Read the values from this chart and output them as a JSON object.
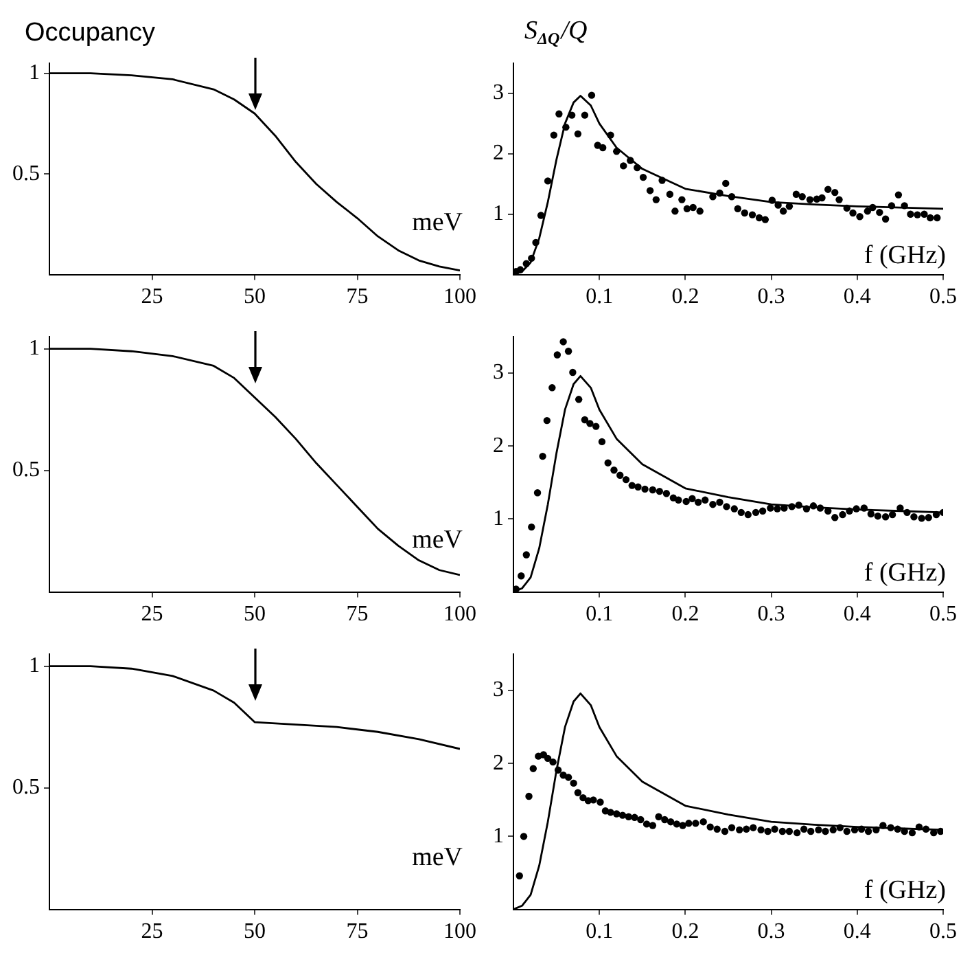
{
  "chart_data": [
    {
      "type": "line",
      "ylabel": "Occupancy",
      "xlabel": "meV",
      "color": "#000000",
      "xlim": [
        0,
        100
      ],
      "xticks": [
        25,
        50,
        75,
        100
      ],
      "ylim": [
        0,
        1.05
      ],
      "yticks": [
        0.5,
        1
      ],
      "grid": false,
      "legend": false,
      "x": [
        0,
        10,
        20,
        30,
        40,
        45,
        50,
        55,
        60,
        65,
        70,
        75,
        80,
        85,
        90,
        95,
        100
      ],
      "values": [
        1,
        1,
        0.99,
        0.97,
        0.92,
        0.87,
        0.8,
        0.69,
        0.56,
        0.45,
        0.36,
        0.28,
        0.19,
        0.12,
        0.07,
        0.04,
        0.02
      ]
    },
    {
      "type": "scatter",
      "ylabel": "S$_{ΔQ}$/Q",
      "xlabel": "f (GHz)",
      "xlim": [
        0,
        0.5
      ],
      "xticks": [
        0.1,
        0.2,
        0.3,
        0.4,
        0.5
      ],
      "ylim": [
        0,
        3.5
      ],
      "yticks": [
        1,
        2,
        3
      ],
      "grid": false,
      "legend": false,
      "series": [
        {
          "type": "scatter",
          "color": "#000000",
          "marker": "circle",
          "x": [
            0.003,
            0.008,
            0.015,
            0.021,
            0.026,
            0.032,
            0.04,
            0.047,
            0.053,
            0.061,
            0.068,
            0.075,
            0.083,
            0.091,
            0.098,
            0.104,
            0.113,
            0.12,
            0.128,
            0.136,
            0.144,
            0.151,
            0.159,
            0.166,
            0.173,
            0.182,
            0.188,
            0.196,
            0.202,
            0.209,
            0.217,
            0.232,
            0.24,
            0.247,
            0.254,
            0.261,
            0.269,
            0.278,
            0.286,
            0.293,
            0.301,
            0.308,
            0.314,
            0.321,
            0.329,
            0.336,
            0.345,
            0.353,
            0.359,
            0.366,
            0.374,
            0.379,
            0.388,
            0.395,
            0.403,
            0.412,
            0.418,
            0.426,
            0.433,
            0.44,
            0.448,
            0.455,
            0.462,
            0.47,
            0.478,
            0.485,
            0.493
          ],
          "values": [
            0.05,
            0.08,
            0.18,
            0.27,
            0.53,
            0.98,
            1.55,
            2.31,
            2.66,
            2.44,
            2.64,
            2.33,
            2.64,
            2.97,
            2.14,
            2.1,
            2.31,
            2.04,
            1.8,
            1.89,
            1.77,
            1.61,
            1.39,
            1.24,
            1.56,
            1.33,
            1.05,
            1.24,
            1.09,
            1.11,
            1.05,
            1.29,
            1.35,
            1.51,
            1.29,
            1.09,
            1.02,
            0.99,
            0.94,
            0.91,
            1.23,
            1.15,
            1.05,
            1.13,
            1.33,
            1.29,
            1.24,
            1.25,
            1.27,
            1.41,
            1.36,
            1.24,
            1.1,
            1.02,
            0.96,
            1.05,
            1.11,
            1.03,
            0.92,
            1.14,
            1.32,
            1.14,
            1,
            0.99,
            1,
            0.94,
            0.94
          ]
        },
        {
          "type": "line",
          "color": "#000000",
          "x": [
            0,
            0.01,
            0.02,
            0.03,
            0.04,
            0.05,
            0.06,
            0.07,
            0.078,
            0.09,
            0.1,
            0.12,
            0.15,
            0.2,
            0.25,
            0.3,
            0.35,
            0.4,
            0.45,
            0.5
          ],
          "values": [
            0,
            0.05,
            0.2,
            0.6,
            1.2,
            1.9,
            2.5,
            2.85,
            2.96,
            2.8,
            2.5,
            2.1,
            1.75,
            1.42,
            1.3,
            1.2,
            1.16,
            1.13,
            1.11,
            1.09
          ]
        }
      ]
    },
    {
      "type": "line",
      "xlabel": "meV",
      "color": "#000000",
      "xlim": [
        0,
        100
      ],
      "xticks": [
        25,
        50,
        75,
        100
      ],
      "ylim": [
        0,
        1.05
      ],
      "yticks": [
        0.5,
        1
      ],
      "grid": false,
      "legend": false,
      "x": [
        0,
        10,
        20,
        30,
        40,
        45,
        50,
        55,
        60,
        65,
        70,
        75,
        80,
        85,
        90,
        95,
        100
      ],
      "values": [
        1,
        1,
        0.99,
        0.97,
        0.93,
        0.88,
        0.8,
        0.72,
        0.63,
        0.53,
        0.44,
        0.35,
        0.26,
        0.19,
        0.13,
        0.09,
        0.07
      ]
    },
    {
      "type": "scatter",
      "xlabel": "f (GHz)",
      "xlim": [
        0,
        0.5
      ],
      "xticks": [
        0.1,
        0.2,
        0.3,
        0.4,
        0.5
      ],
      "ylim": [
        0,
        3.5
      ],
      "yticks": [
        1,
        2,
        3
      ],
      "grid": false,
      "legend": false,
      "series": [
        {
          "type": "scatter",
          "color": "#000000",
          "marker": "circle",
          "x": [
            0.003,
            0.009,
            0.015,
            0.021,
            0.028,
            0.034,
            0.039,
            0.045,
            0.051,
            0.058,
            0.064,
            0.069,
            0.076,
            0.083,
            0.089,
            0.096,
            0.103,
            0.11,
            0.117,
            0.124,
            0.131,
            0.138,
            0.145,
            0.153,
            0.162,
            0.17,
            0.178,
            0.186,
            0.192,
            0.201,
            0.208,
            0.215,
            0.223,
            0.232,
            0.24,
            0.248,
            0.257,
            0.265,
            0.273,
            0.282,
            0.29,
            0.299,
            0.307,
            0.315,
            0.324,
            0.332,
            0.341,
            0.349,
            0.357,
            0.366,
            0.374,
            0.383,
            0.391,
            0.399,
            0.408,
            0.416,
            0.424,
            0.433,
            0.441,
            0.45,
            0.458,
            0.466,
            0.475,
            0.483,
            0.492,
            0.5
          ],
          "values": [
            0.04,
            0.22,
            0.51,
            0.89,
            1.36,
            1.86,
            2.35,
            2.8,
            3.25,
            3.43,
            3.3,
            3.01,
            2.64,
            2.36,
            2.31,
            2.27,
            2.06,
            1.77,
            1.67,
            1.6,
            1.54,
            1.46,
            1.44,
            1.41,
            1.4,
            1.38,
            1.35,
            1.29,
            1.26,
            1.24,
            1.28,
            1.23,
            1.26,
            1.2,
            1.23,
            1.17,
            1.14,
            1.09,
            1.06,
            1.09,
            1.11,
            1.15,
            1.14,
            1.15,
            1.17,
            1.19,
            1.14,
            1.18,
            1.15,
            1.11,
            1.02,
            1.06,
            1.11,
            1.14,
            1.15,
            1.07,
            1.04,
            1.03,
            1.06,
            1.15,
            1.09,
            1.03,
            1.01,
            1.02,
            1.06,
            1.09
          ]
        },
        {
          "type": "line",
          "color": "#000000",
          "x": [
            0,
            0.01,
            0.02,
            0.03,
            0.04,
            0.05,
            0.06,
            0.07,
            0.078,
            0.09,
            0.1,
            0.12,
            0.15,
            0.2,
            0.25,
            0.3,
            0.35,
            0.4,
            0.45,
            0.5
          ],
          "values": [
            0,
            0.05,
            0.2,
            0.6,
            1.2,
            1.9,
            2.5,
            2.85,
            2.96,
            2.8,
            2.5,
            2.1,
            1.75,
            1.42,
            1.3,
            1.2,
            1.16,
            1.13,
            1.11,
            1.09
          ]
        }
      ]
    },
    {
      "type": "line",
      "xlabel": "meV",
      "color": "#000000",
      "xlim": [
        0,
        100
      ],
      "xticks": [
        25,
        50,
        75,
        100
      ],
      "ylim": [
        0,
        1.05
      ],
      "yticks": [
        0.5,
        1
      ],
      "grid": false,
      "legend": false,
      "x": [
        0,
        10,
        20,
        30,
        40,
        45,
        50,
        60,
        70,
        80,
        90,
        100
      ],
      "values": [
        1,
        1,
        0.99,
        0.96,
        0.9,
        0.85,
        0.77,
        0.76,
        0.75,
        0.73,
        0.7,
        0.66
      ]
    },
    {
      "type": "scatter",
      "xlabel": "f (GHz)",
      "xlim": [
        0,
        0.5
      ],
      "xticks": [
        0.1,
        0.2,
        0.3,
        0.4,
        0.5
      ],
      "ylim": [
        0,
        3.5
      ],
      "yticks": [
        1,
        2,
        3
      ],
      "grid": false,
      "legend": false,
      "series": [
        {
          "type": "scatter",
          "color": "#000000",
          "marker": "circle",
          "x": [
            0.007,
            0.012,
            0.018,
            0.023,
            0.029,
            0.035,
            0.04,
            0.046,
            0.052,
            0.058,
            0.064,
            0.07,
            0.075,
            0.081,
            0.087,
            0.093,
            0.101,
            0.107,
            0.113,
            0.12,
            0.127,
            0.134,
            0.141,
            0.148,
            0.155,
            0.162,
            0.169,
            0.176,
            0.183,
            0.19,
            0.197,
            0.204,
            0.212,
            0.221,
            0.229,
            0.237,
            0.246,
            0.254,
            0.263,
            0.271,
            0.279,
            0.288,
            0.296,
            0.304,
            0.313,
            0.321,
            0.33,
            0.338,
            0.346,
            0.355,
            0.363,
            0.372,
            0.38,
            0.388,
            0.397,
            0.405,
            0.413,
            0.422,
            0.43,
            0.439,
            0.447,
            0.455,
            0.464,
            0.472,
            0.48,
            0.489,
            0.497
          ],
          "values": [
            0.46,
            1,
            1.55,
            1.93,
            2.1,
            2.12,
            2.07,
            2.02,
            1.91,
            1.84,
            1.81,
            1.73,
            1.6,
            1.53,
            1.49,
            1.5,
            1.47,
            1.35,
            1.33,
            1.31,
            1.29,
            1.27,
            1.26,
            1.23,
            1.17,
            1.15,
            1.27,
            1.23,
            1.2,
            1.17,
            1.15,
            1.18,
            1.18,
            1.2,
            1.13,
            1.1,
            1.07,
            1.12,
            1.09,
            1.1,
            1.12,
            1.09,
            1.07,
            1.1,
            1.07,
            1.07,
            1.05,
            1.1,
            1.07,
            1.09,
            1.07,
            1.09,
            1.12,
            1.07,
            1.09,
            1.1,
            1.07,
            1.09,
            1.15,
            1.12,
            1.1,
            1.07,
            1.05,
            1.13,
            1.1,
            1.05,
            1.07
          ]
        },
        {
          "type": "line",
          "color": "#000000",
          "x": [
            0,
            0.01,
            0.02,
            0.03,
            0.04,
            0.05,
            0.06,
            0.07,
            0.078,
            0.09,
            0.1,
            0.12,
            0.15,
            0.2,
            0.25,
            0.3,
            0.35,
            0.4,
            0.45,
            0.5
          ],
          "values": [
            0,
            0.05,
            0.2,
            0.6,
            1.2,
            1.9,
            2.5,
            2.85,
            2.96,
            2.8,
            2.5,
            2.1,
            1.75,
            1.42,
            1.3,
            1.2,
            1.16,
            1.13,
            1.11,
            1.09
          ]
        }
      ]
    }
  ]
}
